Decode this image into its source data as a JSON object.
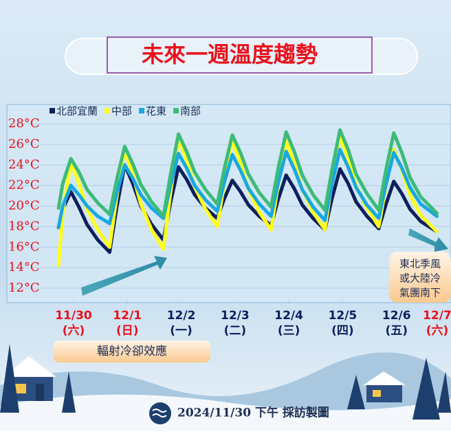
{
  "title": "未來一週溫度趨勢",
  "chart_data": {
    "type": "line",
    "x": [
      -0.28,
      -0.2,
      -0.05,
      0.1,
      0.25,
      0.45,
      0.67,
      0.8,
      0.95,
      1.1,
      1.25,
      1.45,
      1.67,
      1.8,
      1.95,
      2.1,
      2.25,
      2.45,
      2.67,
      2.8,
      2.95,
      3.1,
      3.25,
      3.45,
      3.67,
      3.8,
      3.95,
      4.1,
      4.25,
      4.45,
      4.67,
      4.8,
      4.95,
      5.1,
      5.25,
      5.45,
      5.67,
      5.8,
      5.95,
      6.1,
      6.25,
      6.45,
      6.75
    ],
    "series": [
      {
        "name": "北部宜蘭",
        "color": "#0d1f5c",
        "values": [
          17.9,
          19.7,
          21.4,
          19.9,
          18.2,
          16.7,
          15.5,
          19.8,
          24.0,
          22.2,
          20.0,
          18.2,
          16.7,
          20.3,
          23.8,
          22.6,
          21.1,
          19.8,
          18.8,
          20.7,
          22.5,
          21.4,
          20.1,
          19.0,
          18.1,
          20.6,
          23.0,
          21.7,
          20.1,
          18.8,
          17.7,
          20.7,
          23.6,
          22.2,
          20.4,
          19.0,
          17.8,
          20.1,
          22.4,
          21.2,
          19.7,
          18.5,
          17.5
        ]
      },
      {
        "name": "中部",
        "color": "#ffff1a",
        "values": [
          14.2,
          19.3,
          24.3,
          22.2,
          19.7,
          17.7,
          16.0,
          20.8,
          25.5,
          23.1,
          20.2,
          17.7,
          15.8,
          21.2,
          26.6,
          24.5,
          21.9,
          19.7,
          18.0,
          22.2,
          26.4,
          24.2,
          21.6,
          19.4,
          17.7,
          22.0,
          26.3,
          24.2,
          21.6,
          19.4,
          17.7,
          22.3,
          26.8,
          24.6,
          22.0,
          19.8,
          18.0,
          21.8,
          25.5,
          23.5,
          21.1,
          19.1,
          17.5
        ]
      },
      {
        "name": "花東",
        "color": "#19a8e0",
        "values": [
          17.9,
          20.0,
          22.0,
          21.1,
          20.0,
          19.0,
          18.3,
          21.2,
          24.0,
          22.7,
          21.1,
          19.8,
          18.8,
          22.0,
          25.1,
          23.7,
          22.0,
          20.6,
          19.5,
          22.3,
          25.0,
          23.5,
          21.7,
          20.2,
          19.0,
          22.2,
          25.3,
          23.6,
          21.6,
          19.9,
          18.6,
          22.1,
          25.5,
          23.8,
          21.8,
          20.1,
          18.8,
          22.0,
          25.2,
          23.7,
          21.8,
          20.2,
          19.0
        ]
      },
      {
        "name": "南部",
        "color": "#3dbb78",
        "values": [
          19.8,
          22.2,
          24.6,
          23.3,
          21.6,
          20.3,
          19.2,
          22.5,
          25.8,
          24.1,
          22.1,
          20.4,
          19.0,
          23.0,
          27.0,
          25.3,
          23.3,
          21.6,
          20.2,
          23.6,
          26.9,
          25.2,
          23.1,
          21.3,
          19.9,
          23.6,
          27.2,
          25.3,
          23.0,
          21.1,
          19.6,
          23.5,
          27.4,
          25.5,
          23.1,
          21.2,
          19.6,
          23.4,
          27.1,
          25.2,
          22.8,
          20.9,
          19.3
        ]
      }
    ],
    "xlim": [
      -0.3,
      7
    ],
    "xticks": [
      {
        "value": 0,
        "label": "11/30"
      },
      {
        "value": 1,
        "label": "12/1"
      },
      {
        "value": 2,
        "label": "12/2"
      },
      {
        "value": 3,
        "label": "12/3"
      },
      {
        "value": 4,
        "label": "12/4"
      },
      {
        "value": 5,
        "label": "12/5"
      },
      {
        "value": 6,
        "label": "12/6"
      },
      {
        "value": 7,
        "label": "12/7"
      }
    ],
    "xtick_sublabels": [
      "(六)",
      "(日)",
      "(一)",
      "(二)",
      "(三)",
      "(四)",
      "(五)",
      "(六)"
    ],
    "xtick_colors": [
      "#e8121c",
      "#e8121c",
      "#0d1f5c",
      "#0d1f5c",
      "#0d1f5c",
      "#0d1f5c",
      "#0d1f5c",
      "#e8121c"
    ],
    "ylim": [
      12,
      28
    ],
    "yticks": [
      {
        "value": 12,
        "label": "12°C"
      },
      {
        "value": 14,
        "label": "14°C"
      },
      {
        "value": 16,
        "label": "16°C"
      },
      {
        "value": 18,
        "label": "18°C"
      },
      {
        "value": 20,
        "label": "20°C"
      },
      {
        "value": 22,
        "label": "22°C"
      },
      {
        "value": 24,
        "label": "24°C"
      },
      {
        "value": 26,
        "label": "26°C"
      },
      {
        "value": 28,
        "label": "28°C"
      }
    ],
    "ytick_color": "#e8121c",
    "grid": true,
    "legend": "top-left",
    "annotations": [
      "輻射冷卻效應",
      "東北季風",
      "或大陸冷",
      "氣團南下"
    ]
  },
  "footer": "2024/11/30 下午 採訪製圖"
}
